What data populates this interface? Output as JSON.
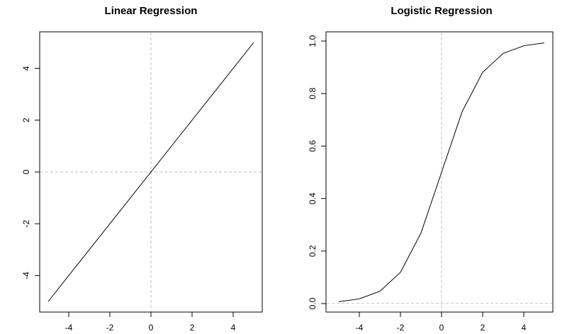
{
  "chart_data": [
    {
      "type": "line",
      "title": "Linear Regression",
      "xlabel": "",
      "ylabel": "",
      "xlim": [
        -5,
        5
      ],
      "ylim": [
        -5,
        5
      ],
      "xticks": [
        -4,
        -2,
        0,
        2,
        4
      ],
      "yticks": [
        -4,
        -2,
        0,
        2,
        4
      ],
      "ref_lines": {
        "x": 0,
        "y": 0
      },
      "series": [
        {
          "x": [
            -5,
            5
          ],
          "y": [
            -5,
            5
          ]
        }
      ]
    },
    {
      "type": "line",
      "title": "Logistic Regression",
      "xlabel": "",
      "ylabel": "",
      "xlim": [
        -5,
        5
      ],
      "ylim": [
        0,
        1
      ],
      "xticks": [
        -4,
        -2,
        0,
        2,
        4
      ],
      "yticks": [
        "0.0",
        "0.2",
        "0.4",
        "0.6",
        "0.8",
        "1.0"
      ],
      "ref_lines": {
        "x": 0,
        "y": 0
      },
      "series": [
        {
          "x": [
            -5,
            -4,
            -3,
            -2,
            -1,
            0,
            1,
            2,
            3,
            4,
            5
          ],
          "y": [
            0.007,
            0.018,
            0.047,
            0.119,
            0.269,
            0.5,
            0.731,
            0.881,
            0.953,
            0.982,
            0.993
          ]
        }
      ]
    }
  ]
}
